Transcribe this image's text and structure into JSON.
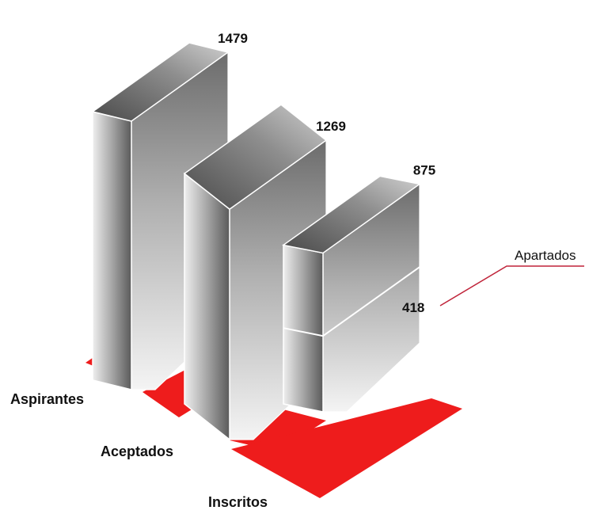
{
  "chart_data": {
    "type": "bar",
    "title": "",
    "categories": [
      "Aspirantes",
      "Aceptados",
      "Inscritos"
    ],
    "values": [
      1479,
      1269,
      875
    ],
    "stack_segment": {
      "category": "Inscritos",
      "label": "Apartados",
      "value": 418
    },
    "ylim": [
      0,
      1500
    ],
    "grid": false,
    "legend": "none",
    "colors": {
      "floor": "#ee1c1c",
      "bar_light": "#f2f2f2",
      "bar_dark": "#4a4a4a",
      "callout_line": "#c0243a"
    }
  }
}
